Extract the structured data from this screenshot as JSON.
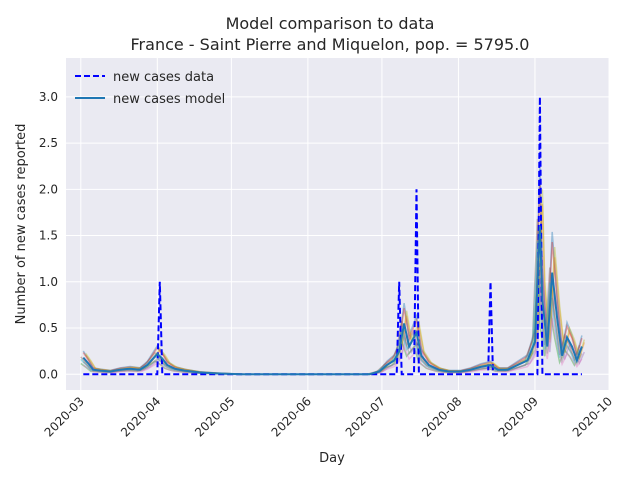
{
  "chart_data": {
    "type": "line",
    "title": "Model comparison to data",
    "subtitle": "France - Saint Pierre and Miquelon, pop. = 5795.0",
    "xlabel": "Day",
    "ylabel": "Number of new cases reported",
    "x_range": [
      "2020-02-24",
      "2020-10-01"
    ],
    "ylim": [
      -0.17,
      3.42
    ],
    "x_ticks": [
      "2020-03",
      "2020-04",
      "2020-05",
      "2020-06",
      "2020-07",
      "2020-08",
      "2020-09",
      "2020-10"
    ],
    "y_ticks": [
      "0.0",
      "0.5",
      "1.0",
      "1.5",
      "2.0",
      "2.5",
      "3.0"
    ],
    "grid": true,
    "background": "#eaeaf2",
    "legend_position": "top-left",
    "series": [
      {
        "name": "new cases data",
        "style": "dashed",
        "color": "#0000ff",
        "points": [
          [
            "2020-03-02",
            0
          ],
          [
            "2020-04-01",
            0
          ],
          [
            "2020-04-02",
            1
          ],
          [
            "2020-04-03",
            0
          ],
          [
            "2020-07-07",
            0
          ],
          [
            "2020-07-08",
            1
          ],
          [
            "2020-07-09",
            0
          ],
          [
            "2020-07-14",
            0
          ],
          [
            "2020-07-15",
            2
          ],
          [
            "2020-07-16",
            0
          ],
          [
            "2020-08-13",
            0
          ],
          [
            "2020-08-14",
            1
          ],
          [
            "2020-08-15",
            0
          ],
          [
            "2020-09-02",
            0
          ],
          [
            "2020-09-03",
            3
          ],
          [
            "2020-09-04",
            0
          ],
          [
            "2020-09-20",
            0
          ]
        ]
      },
      {
        "name": "new cases model",
        "style": "solid",
        "color": "#1f77b4",
        "points": [
          [
            "2020-03-02",
            0.18
          ],
          [
            "2020-03-04",
            0.12
          ],
          [
            "2020-03-06",
            0.05
          ],
          [
            "2020-03-09",
            0.04
          ],
          [
            "2020-03-13",
            0.03
          ],
          [
            "2020-03-17",
            0.05
          ],
          [
            "2020-03-21",
            0.06
          ],
          [
            "2020-03-25",
            0.05
          ],
          [
            "2020-03-28",
            0.1
          ],
          [
            "2020-04-01",
            0.22
          ],
          [
            "2020-04-03",
            0.17
          ],
          [
            "2020-04-05",
            0.1
          ],
          [
            "2020-04-08",
            0.06
          ],
          [
            "2020-04-12",
            0.04
          ],
          [
            "2020-04-18",
            0.02
          ],
          [
            "2020-04-25",
            0.01
          ],
          [
            "2020-05-05",
            0.0
          ],
          [
            "2020-06-26",
            0.0
          ],
          [
            "2020-06-30",
            0.03
          ],
          [
            "2020-07-03",
            0.1
          ],
          [
            "2020-07-06",
            0.15
          ],
          [
            "2020-07-08",
            0.25
          ],
          [
            "2020-07-10",
            0.55
          ],
          [
            "2020-07-12",
            0.3
          ],
          [
            "2020-07-15",
            0.45
          ],
          [
            "2020-07-17",
            0.2
          ],
          [
            "2020-07-20",
            0.1
          ],
          [
            "2020-07-24",
            0.05
          ],
          [
            "2020-07-28",
            0.03
          ],
          [
            "2020-08-02",
            0.03
          ],
          [
            "2020-08-06",
            0.05
          ],
          [
            "2020-08-10",
            0.08
          ],
          [
            "2020-08-14",
            0.1
          ],
          [
            "2020-08-17",
            0.05
          ],
          [
            "2020-08-21",
            0.05
          ],
          [
            "2020-08-25",
            0.1
          ],
          [
            "2020-08-29",
            0.15
          ],
          [
            "2020-09-01",
            0.35
          ],
          [
            "2020-09-03",
            1.6
          ],
          [
            "2020-09-04",
            0.8
          ],
          [
            "2020-09-06",
            0.3
          ],
          [
            "2020-09-08",
            1.1
          ],
          [
            "2020-09-10",
            0.6
          ],
          [
            "2020-09-12",
            0.2
          ],
          [
            "2020-09-14",
            0.4
          ],
          [
            "2020-09-16",
            0.3
          ],
          [
            "2020-09-18",
            0.15
          ],
          [
            "2020-09-20",
            0.3
          ]
        ]
      }
    ]
  }
}
